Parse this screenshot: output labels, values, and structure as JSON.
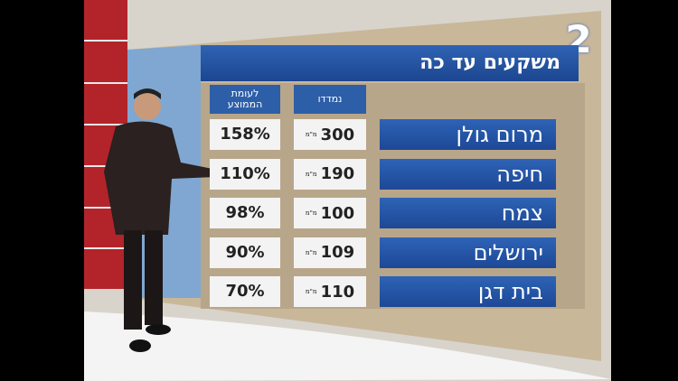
{
  "logo": "2",
  "title": "משקעים עד כה",
  "table": {
    "headers": [
      "נמדדו",
      "לעומת הממוצע"
    ],
    "rows": [
      {
        "name": "מרום גולן",
        "measured": "300",
        "unit": "מ\"מ",
        "percent": "158%"
      },
      {
        "name": "חיפה",
        "measured": "190",
        "unit": "מ\"מ",
        "percent": "110%"
      },
      {
        "name": "צמח",
        "measured": "100",
        "unit": "מ\"מ",
        "percent": "98%"
      },
      {
        "name": "ירושלים",
        "measured": "109",
        "unit": "מ\"מ",
        "percent": "90%"
      },
      {
        "name": "בית דגן",
        "measured": "110",
        "unit": "מ\"מ",
        "percent": "70%"
      }
    ]
  }
}
